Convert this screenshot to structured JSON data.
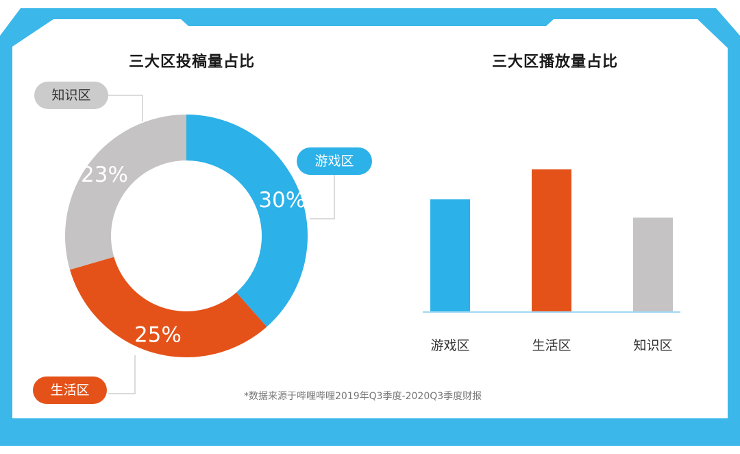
{
  "colors": {
    "frame": "#3bb7ea",
    "game": "#2cb1e8",
    "life": "#e55219",
    "knowledge": "#c5c3c4"
  },
  "pie_title": "三大区投稿量占比",
  "bar_title": "三大区播放量占比",
  "labels": {
    "knowledge": "知识区",
    "game": "游戏区",
    "life": "生活区"
  },
  "footnote": "*数据来源于哔哩哔哩2019年Q3季度-2020Q3季度财报",
  "chart_data": [
    {
      "type": "pie",
      "title": "三大区投稿量占比",
      "donut": true,
      "slices": [
        {
          "name": "游戏区",
          "value": 30,
          "label": "30%",
          "color": "#2cb1e8"
        },
        {
          "name": "生活区",
          "value": 25,
          "label": "25%",
          "color": "#e55219"
        },
        {
          "name": "知识区",
          "value": 23,
          "label": "23%",
          "color": "#c5c3c4"
        }
      ]
    },
    {
      "type": "bar",
      "title": "三大区播放量占比",
      "categories": [
        "游戏区",
        "生活区",
        "知识区"
      ],
      "values": [
        0.79,
        1.0,
        0.66
      ],
      "colors": [
        "#2cb1e8",
        "#e55219",
        "#c5c3c4"
      ],
      "axes_values_shown": false
    }
  ]
}
